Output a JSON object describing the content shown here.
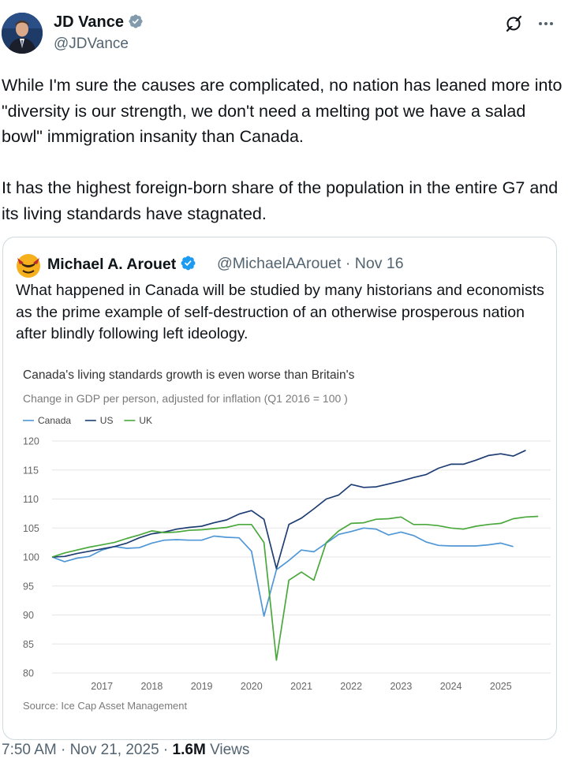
{
  "tweet": {
    "author_name": "JD Vance",
    "author_handle": "@JDVance",
    "text": "While I'm sure the causes are complicated, no nation has leaned more into \"diversity is our strength, we don't need a melting pot we have a salad bowl\" immigration insanity than Canada.\n\nIt has the highest foreign-born share of the population in the entire G7 and its living standards have stagnated.",
    "time": "7:50 AM",
    "date": "Nov 21, 2025",
    "views_count": "1.6M",
    "views_label": "Views",
    "separator": "·"
  },
  "quote": {
    "author_name": "Michael A. Arouet",
    "author_handle": "@MichaelAArouet",
    "date": "Nov 16",
    "text": "What happened in Canada will be studied by many historians and economists as the prime example of self-destruction of an otherwise prosperous nation after blindly following left ideology."
  },
  "colors": {
    "canada": "#4f97d6",
    "us": "#1e3d73",
    "uk": "#4aa83c",
    "verified": "#1d9bf0"
  },
  "chart_data": {
    "type": "line",
    "title": "Canada's living standards growth is even worse than Britain's",
    "subtitle": "Change in GDP per person, adjusted for inflation (Q1 2016 = 100 )",
    "source": "Source: Ice Cap Asset Management",
    "xlabel": "",
    "ylabel": "",
    "ylim": [
      80,
      120
    ],
    "yticks": [
      "120",
      "115",
      "110",
      "105",
      "100",
      "95",
      "90",
      "85",
      "80"
    ],
    "xticks": [
      "2017",
      "2018",
      "2019",
      "2020",
      "2021",
      "2022",
      "2023",
      "2024",
      "2025"
    ],
    "legend_position": "top-left",
    "series": [
      {
        "name": "Canada",
        "color_key": "canada",
        "x": [
          2016.0,
          2016.25,
          2016.5,
          2016.75,
          2017.0,
          2017.25,
          2017.5,
          2017.75,
          2018.0,
          2018.25,
          2018.5,
          2018.75,
          2019.0,
          2019.25,
          2019.5,
          2019.75,
          2020.0,
          2020.25,
          2020.5,
          2020.75,
          2021.0,
          2021.25,
          2021.5,
          2021.75,
          2022.0,
          2022.25,
          2022.5,
          2022.75,
          2023.0,
          2023.25,
          2023.5,
          2023.75,
          2024.0,
          2024.25,
          2024.5,
          2024.75,
          2025.0,
          2025.25,
          2025.5
        ],
        "values": [
          100.0,
          99.2,
          99.8,
          100.1,
          101.2,
          101.8,
          101.5,
          101.6,
          102.4,
          102.9,
          103.0,
          102.9,
          102.9,
          103.6,
          103.4,
          103.3,
          101.0,
          89.8,
          97.8,
          99.4,
          101.2,
          100.9,
          102.4,
          103.9,
          104.4,
          105.0,
          104.8,
          103.8,
          104.3,
          103.7,
          102.6,
          102.0,
          101.9,
          101.9,
          101.9,
          102.1,
          102.4,
          101.8,
          null
        ]
      },
      {
        "name": "US",
        "color_key": "us",
        "x": [
          2016.0,
          2016.25,
          2016.5,
          2016.75,
          2017.0,
          2017.25,
          2017.5,
          2017.75,
          2018.0,
          2018.25,
          2018.5,
          2018.75,
          2019.0,
          2019.25,
          2019.5,
          2019.75,
          2020.0,
          2020.25,
          2020.5,
          2020.75,
          2021.0,
          2021.25,
          2021.5,
          2021.75,
          2022.0,
          2022.25,
          2022.5,
          2022.75,
          2023.0,
          2023.25,
          2023.5,
          2023.75,
          2024.0,
          2024.25,
          2024.5,
          2024.75,
          2025.0,
          2025.25,
          2025.5
        ],
        "values": [
          100.0,
          100.1,
          100.6,
          101.0,
          101.4,
          101.8,
          102.4,
          103.3,
          104.0,
          104.3,
          104.8,
          105.1,
          105.3,
          105.9,
          106.4,
          107.4,
          108.0,
          106.5,
          98.0,
          105.6,
          106.7,
          108.3,
          110.0,
          110.7,
          112.5,
          112.0,
          112.1,
          112.6,
          113.1,
          113.7,
          114.2,
          115.3,
          116.0,
          116.0,
          116.7,
          117.5,
          117.8,
          117.4,
          118.4
        ]
      },
      {
        "name": "UK",
        "color_key": "uk",
        "x": [
          2016.0,
          2016.25,
          2016.5,
          2016.75,
          2017.0,
          2017.25,
          2017.5,
          2017.75,
          2018.0,
          2018.25,
          2018.5,
          2018.75,
          2019.0,
          2019.25,
          2019.5,
          2019.75,
          2020.0,
          2020.25,
          2020.5,
          2020.75,
          2021.0,
          2021.25,
          2021.5,
          2021.75,
          2022.0,
          2022.25,
          2022.5,
          2022.75,
          2023.0,
          2023.25,
          2023.5,
          2023.75,
          2024.0,
          2024.25,
          2024.5,
          2024.75,
          2025.0,
          2025.25,
          2025.5,
          2025.75
        ],
        "values": [
          100.0,
          100.7,
          101.2,
          101.7,
          102.1,
          102.5,
          103.2,
          103.8,
          104.5,
          104.2,
          104.3,
          104.6,
          104.7,
          104.9,
          105.1,
          105.6,
          105.6,
          102.5,
          82.2,
          96.0,
          97.4,
          96.0,
          102.5,
          104.5,
          105.8,
          105.9,
          106.5,
          106.6,
          106.9,
          105.6,
          105.6,
          105.4,
          105.0,
          104.8,
          105.3,
          105.6,
          105.8,
          106.6,
          106.9,
          107.0
        ]
      }
    ]
  }
}
